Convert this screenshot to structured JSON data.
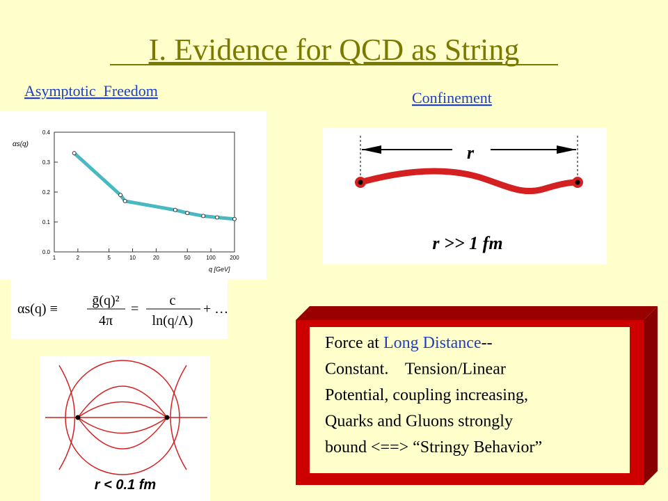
{
  "title": "I. Evidence for QCD as String",
  "left_heading": "Asymptotic  Freedom",
  "right_heading": "Confinement",
  "plot": {
    "ylabel": "αs(q)",
    "xlabel": "q [GeV]",
    "xlim": [
      1,
      200
    ],
    "ylim": [
      0,
      0.4
    ],
    "log_x": true,
    "xticks": [
      1,
      2,
      5,
      10,
      20,
      50,
      100,
      200
    ],
    "yticks": [
      {
        "value": 0,
        "label": "0.0"
      },
      {
        "value": 0.1,
        "label": "0.1"
      },
      {
        "value": 0.2,
        "label": "0.2"
      },
      {
        "value": 0.3,
        "label": "0.3"
      },
      {
        "value": 0.4,
        "label": "0.4"
      }
    ],
    "x": [
      1.8,
      7,
      8,
      35,
      50,
      80,
      120,
      200
    ],
    "y": [
      0.33,
      0.19,
      0.17,
      0.14,
      0.13,
      0.12,
      0.115,
      0.11
    ],
    "color": "#1aa8b0"
  },
  "formula": {
    "lhs": "αs(q) ≡",
    "num1": "ḡ(q)²",
    "den1": "4π",
    "eq": "=",
    "num2": "c",
    "den2": "ln(q/Λ)",
    "tail": "+ …"
  },
  "confinement_image": {
    "r": "r",
    "caption": "r >> 1 fm"
  },
  "field_image": {
    "caption": "r < 0.1 fm"
  },
  "box": {
    "lines": [
      [
        "Force at ",
        "Long Distance",
        "--"
      ],
      [
        "Constant.    Tension/Linear"
      ],
      [
        "Potential, coupling increasing,"
      ],
      [
        "Quarks and Gluons strongly"
      ],
      [
        "bound <==> “Stringy Behavior”"
      ]
    ]
  }
}
